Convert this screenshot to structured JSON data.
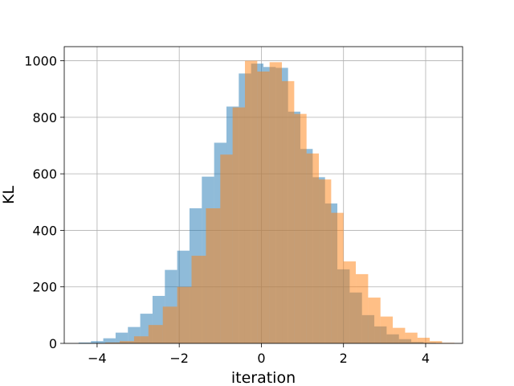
{
  "chart_data": {
    "type": "histogram",
    "xlabel": "iteration",
    "ylabel": "KL",
    "xlim": [
      -4.8,
      4.9
    ],
    "ylim": [
      0,
      1050
    ],
    "xticks": [
      -4,
      -2,
      0,
      2,
      4
    ],
    "xtick_labels": [
      "−4",
      "−2",
      "0",
      "2",
      "4"
    ],
    "yticks": [
      0,
      200,
      400,
      600,
      800,
      1000
    ],
    "ytick_labels": [
      "0",
      "200",
      "400",
      "600",
      "800",
      "1000"
    ],
    "grid": true,
    "legend": "none",
    "series": [
      {
        "color": "#1f77b4",
        "alpha": 0.5,
        "bins": [
          {
            "x0": -4.45,
            "x1": -4.15,
            "count": 3
          },
          {
            "x0": -4.15,
            "x1": -3.85,
            "count": 8
          },
          {
            "x0": -3.85,
            "x1": -3.55,
            "count": 18
          },
          {
            "x0": -3.55,
            "x1": -3.25,
            "count": 38
          },
          {
            "x0": -3.25,
            "x1": -2.95,
            "count": 58
          },
          {
            "x0": -2.95,
            "x1": -2.65,
            "count": 105
          },
          {
            "x0": -2.65,
            "x1": -2.35,
            "count": 168
          },
          {
            "x0": -2.35,
            "x1": -2.05,
            "count": 260
          },
          {
            "x0": -2.05,
            "x1": -1.75,
            "count": 328
          },
          {
            "x0": -1.75,
            "x1": -1.45,
            "count": 478
          },
          {
            "x0": -1.45,
            "x1": -1.15,
            "count": 590
          },
          {
            "x0": -1.15,
            "x1": -0.85,
            "count": 710
          },
          {
            "x0": -0.85,
            "x1": -0.55,
            "count": 838
          },
          {
            "x0": -0.55,
            "x1": -0.25,
            "count": 955
          },
          {
            "x0": -0.25,
            "x1": 0.05,
            "count": 990
          },
          {
            "x0": 0.05,
            "x1": 0.35,
            "count": 978
          },
          {
            "x0": 0.35,
            "x1": 0.65,
            "count": 975
          },
          {
            "x0": 0.65,
            "x1": 0.95,
            "count": 820
          },
          {
            "x0": 0.95,
            "x1": 1.25,
            "count": 688
          },
          {
            "x0": 1.25,
            "x1": 1.55,
            "count": 588
          },
          {
            "x0": 1.55,
            "x1": 1.85,
            "count": 495
          },
          {
            "x0": 1.85,
            "x1": 2.15,
            "count": 262
          },
          {
            "x0": 2.15,
            "x1": 2.45,
            "count": 180
          },
          {
            "x0": 2.45,
            "x1": 2.75,
            "count": 100
          },
          {
            "x0": 2.75,
            "x1": 3.05,
            "count": 60
          },
          {
            "x0": 3.05,
            "x1": 3.35,
            "count": 32
          },
          {
            "x0": 3.35,
            "x1": 3.65,
            "count": 15
          },
          {
            "x0": 3.65,
            "x1": 3.95,
            "count": 5
          },
          {
            "x0": 3.95,
            "x1": 4.25,
            "count": 2
          }
        ]
      },
      {
        "color": "#ff7f0e",
        "alpha": 0.5,
        "bins": [
          {
            "x0": -3.8,
            "x1": -3.45,
            "count": 3
          },
          {
            "x0": -3.45,
            "x1": -3.1,
            "count": 8
          },
          {
            "x0": -3.1,
            "x1": -2.75,
            "count": 25
          },
          {
            "x0": -2.75,
            "x1": -2.4,
            "count": 65
          },
          {
            "x0": -2.4,
            "x1": -2.05,
            "count": 130
          },
          {
            "x0": -2.05,
            "x1": -1.7,
            "count": 200
          },
          {
            "x0": -1.7,
            "x1": -1.35,
            "count": 310
          },
          {
            "x0": -1.35,
            "x1": -1.0,
            "count": 478
          },
          {
            "x0": -1.0,
            "x1": -0.7,
            "count": 668
          },
          {
            "x0": -0.7,
            "x1": -0.4,
            "count": 835
          },
          {
            "x0": -0.4,
            "x1": -0.1,
            "count": 1000
          },
          {
            "x0": -0.1,
            "x1": 0.2,
            "count": 962
          },
          {
            "x0": 0.2,
            "x1": 0.5,
            "count": 995
          },
          {
            "x0": 0.5,
            "x1": 0.8,
            "count": 928
          },
          {
            "x0": 0.8,
            "x1": 1.1,
            "count": 812
          },
          {
            "x0": 1.1,
            "x1": 1.4,
            "count": 672
          },
          {
            "x0": 1.4,
            "x1": 1.7,
            "count": 580
          },
          {
            "x0": 1.7,
            "x1": 2.0,
            "count": 462
          },
          {
            "x0": 2.0,
            "x1": 2.3,
            "count": 290
          },
          {
            "x0": 2.3,
            "x1": 2.6,
            "count": 245
          },
          {
            "x0": 2.6,
            "x1": 2.9,
            "count": 162
          },
          {
            "x0": 2.9,
            "x1": 3.2,
            "count": 95
          },
          {
            "x0": 3.2,
            "x1": 3.5,
            "count": 55
          },
          {
            "x0": 3.5,
            "x1": 3.8,
            "count": 38
          },
          {
            "x0": 3.8,
            "x1": 4.1,
            "count": 20
          },
          {
            "x0": 4.1,
            "x1": 4.4,
            "count": 8
          },
          {
            "x0": 4.4,
            "x1": 4.7,
            "count": 2
          }
        ]
      }
    ]
  }
}
